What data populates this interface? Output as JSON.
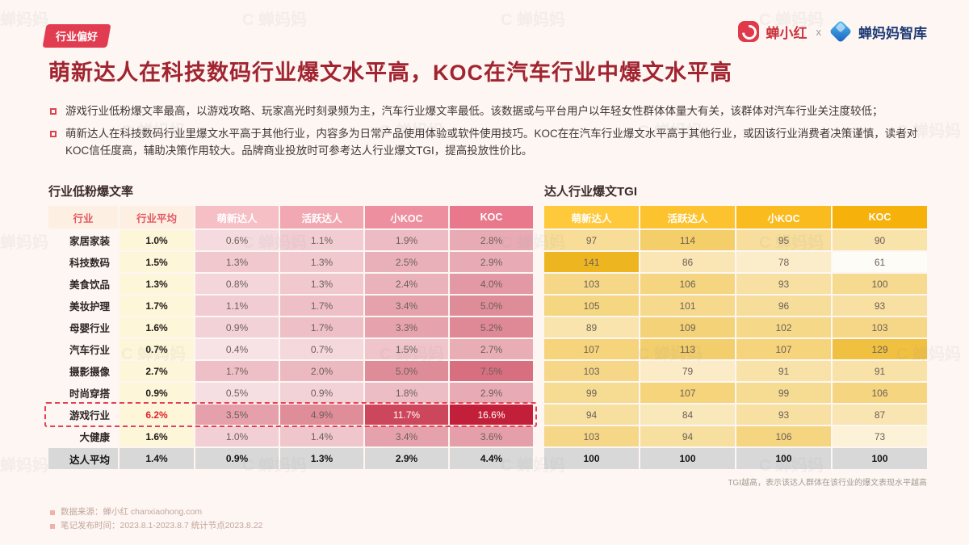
{
  "header": {
    "badge": "行业偏好",
    "brand_left": "蝉小红",
    "brand_separator": "x",
    "brand_right": "蝉妈妈智库",
    "title": "萌新达人在科技数码行业爆文水平高，KOC在汽车行业中爆文水平高"
  },
  "bullets": [
    "游戏行业低粉爆文率最高，以游戏攻略、玩家高光时刻录频为主，汽车行业爆文率最低。该数据或与平台用户以年轻女性群体体量大有关，该群体对汽车行业关注度较低；",
    "萌新达人在科技数码行业里爆文水平高于其他行业，内容多为日常产品使用体验或软件使用技巧。KOC在在汽车行业爆文水平高于其他行业，或因该行业消费者决策谨慎，读者对KOC信任度高，辅助决策作用较大。品牌商业投放时可参考达人行业爆文TGI，提高投放性价比。"
  ],
  "chart_data": [
    {
      "type": "heatmap",
      "title": "行业低粉爆文率",
      "unit": "%",
      "columns": [
        "行业",
        "行业平均",
        "萌新达人",
        "活跃达人",
        "小KOC",
        "KOC"
      ],
      "rows": [
        {
          "industry": "家居家装",
          "avg": "1.0%",
          "values": [
            0.6,
            1.1,
            1.9,
            2.8
          ]
        },
        {
          "industry": "科技数码",
          "avg": "1.5%",
          "values": [
            1.3,
            1.3,
            2.5,
            2.9
          ]
        },
        {
          "industry": "美食饮品",
          "avg": "1.3%",
          "values": [
            0.8,
            1.3,
            2.4,
            4.0
          ]
        },
        {
          "industry": "美妆护理",
          "avg": "1.7%",
          "values": [
            1.1,
            1.7,
            3.4,
            5.0
          ]
        },
        {
          "industry": "母婴行业",
          "avg": "1.6%",
          "values": [
            0.9,
            1.7,
            3.3,
            5.2
          ]
        },
        {
          "industry": "汽车行业",
          "avg": "0.7%",
          "values": [
            0.4,
            0.7,
            1.5,
            2.7
          ]
        },
        {
          "industry": "摄影摄像",
          "avg": "2.7%",
          "values": [
            1.7,
            2.0,
            5.0,
            7.5
          ]
        },
        {
          "industry": "时尚穿搭",
          "avg": "0.9%",
          "values": [
            0.5,
            0.9,
            1.8,
            2.9
          ]
        },
        {
          "industry": "游戏行业",
          "avg": "6.2%",
          "values": [
            3.5,
            4.9,
            11.7,
            16.6
          ],
          "highlight": true
        },
        {
          "industry": "大健康",
          "avg": "1.6%",
          "values": [
            1.0,
            1.4,
            3.4,
            3.6
          ]
        }
      ],
      "footer_row": {
        "industry": "达人平均",
        "avg": "1.4%",
        "values": [
          0.9,
          1.3,
          2.9,
          4.4
        ]
      },
      "heat_color": "#c2203a"
    },
    {
      "type": "heatmap",
      "title": "达人行业爆文TGI",
      "columns": [
        "萌新达人",
        "活跃达人",
        "小KOC",
        "KOC"
      ],
      "rows": [
        [
          97,
          114,
          95,
          90
        ],
        [
          141,
          86,
          78,
          61
        ],
        [
          103,
          106,
          93,
          100
        ],
        [
          105,
          101,
          96,
          93
        ],
        [
          89,
          109,
          102,
          103
        ],
        [
          107,
          113,
          107,
          129
        ],
        [
          103,
          79,
          91,
          91
        ],
        [
          99,
          107,
          99,
          106
        ],
        [
          94,
          84,
          93,
          87
        ],
        [
          103,
          94,
          106,
          73
        ]
      ],
      "footer_row": [
        100,
        100,
        100,
        100
      ],
      "note": "TGI越高，表示该达人群体在该行业的爆文表现水平越高",
      "heat_color": "#edb41c"
    }
  ],
  "footer": {
    "source": "数据来源：蝉小红 chanxiaohong.com",
    "time": "笔记发布时间：2023.8.1-2023.8.7 统计节点2023.8.22"
  },
  "watermark_text": "蝉妈妈",
  "colors": {
    "accent_red": "#e13c4f",
    "deep_red": "#c2203a",
    "gold": "#edb41c",
    "title_red": "#a12430"
  }
}
